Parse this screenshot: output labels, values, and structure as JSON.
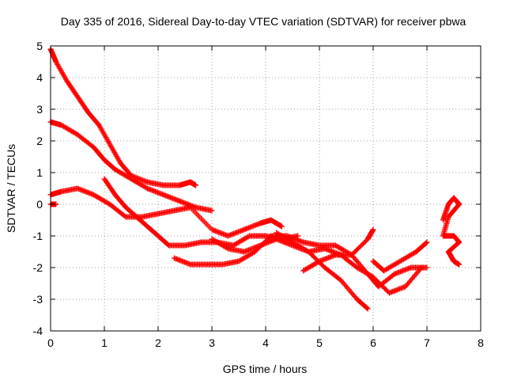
{
  "chart_data": {
    "type": "scatter",
    "title": "Day 335 of 2016, Sidereal Day-to-day VTEC variation (SDTVAR) for receiver pbwa",
    "xlabel": "GPS time / hours",
    "ylabel": "SDTVAR / TECUs",
    "xlim": [
      0,
      8
    ],
    "ylim": [
      -4,
      5
    ],
    "xticks": [
      "0",
      "1",
      "2",
      "3",
      "4",
      "5",
      "6",
      "7",
      "8"
    ],
    "yticks": [
      "-4",
      "-3",
      "-2",
      "-1",
      "0",
      "1",
      "2",
      "3",
      "4",
      "5"
    ],
    "grid": true,
    "marker": "+",
    "color": "#ff0000",
    "series": [
      {
        "x": [
          0.0,
          0.1,
          0.3,
          0.5,
          0.7,
          0.9,
          1.1,
          1.3,
          1.5,
          1.8,
          2.1,
          2.4,
          2.6,
          2.7
        ],
        "y": [
          4.9,
          4.5,
          3.9,
          3.4,
          2.9,
          2.5,
          1.9,
          1.3,
          0.9,
          0.7,
          0.6,
          0.6,
          0.7,
          0.6
        ]
      },
      {
        "x": [
          0.0,
          0.2,
          0.5,
          0.8,
          1.0,
          1.2,
          1.5,
          1.8,
          2.1,
          2.4,
          2.7,
          3.0
        ],
        "y": [
          2.6,
          2.5,
          2.2,
          1.8,
          1.4,
          1.1,
          0.8,
          0.5,
          0.3,
          0.1,
          -0.1,
          -0.2
        ]
      },
      {
        "x": [
          0.0,
          0.1
        ],
        "y": [
          0.0,
          0.0
        ]
      },
      {
        "x": [
          0.0,
          0.2,
          0.5,
          0.8,
          1.1,
          1.4,
          1.7,
          2.0,
          2.3,
          2.6,
          3.0,
          3.3,
          3.6,
          3.9,
          4.1,
          4.3
        ],
        "y": [
          0.3,
          0.4,
          0.5,
          0.3,
          0.0,
          -0.4,
          -0.4,
          -0.3,
          -0.2,
          -0.1,
          -0.8,
          -1.0,
          -0.8,
          -0.6,
          -0.5,
          -0.7
        ]
      },
      {
        "x": [
          1.0,
          1.2,
          1.4,
          1.6,
          1.8,
          2.0,
          2.2,
          2.5,
          2.8,
          3.1,
          3.4,
          3.7,
          4.0,
          4.3,
          4.6
        ],
        "y": [
          0.8,
          0.3,
          -0.1,
          -0.4,
          -0.7,
          -1.0,
          -1.3,
          -1.3,
          -1.2,
          -1.2,
          -1.3,
          -1.0,
          -1.0,
          -1.1,
          -1.0
        ]
      },
      {
        "x": [
          2.3,
          2.6,
          2.9,
          3.2,
          3.5,
          3.8,
          4.1,
          4.4,
          4.7,
          5.0,
          5.3,
          5.6,
          5.9,
          6.1,
          6.4,
          6.7,
          7.0
        ],
        "y": [
          -1.7,
          -1.9,
          -1.9,
          -1.9,
          -1.8,
          -1.5,
          -1.0,
          -1.0,
          -1.2,
          -1.3,
          -1.3,
          -1.6,
          -2.2,
          -2.6,
          -2.2,
          -2.0,
          -2.0
        ]
      },
      {
        "x": [
          4.2,
          4.5,
          4.8,
          5.1,
          5.4,
          5.7,
          5.9
        ],
        "y": [
          -0.9,
          -1.2,
          -1.5,
          -2.0,
          -2.4,
          -3.0,
          -3.3
        ]
      },
      {
        "x": [
          3.0,
          3.3,
          3.6,
          3.9,
          4.2,
          4.5,
          4.8,
          5.1,
          5.4,
          5.7,
          6.0,
          6.3,
          6.6,
          6.9
        ],
        "y": [
          -1.1,
          -1.4,
          -1.5,
          -1.3,
          -1.1,
          -1.3,
          -1.5,
          -1.4,
          -1.6,
          -2.0,
          -2.3,
          -2.8,
          -2.6,
          -2.0
        ]
      },
      {
        "x": [
          4.7,
          5.0,
          5.3,
          5.6,
          5.9,
          6.0
        ],
        "y": [
          -2.1,
          -1.8,
          -1.6,
          -1.6,
          -1.1,
          -0.8
        ]
      },
      {
        "x": [
          6.0,
          6.2,
          6.5,
          6.8,
          7.0
        ],
        "y": [
          -1.8,
          -2.1,
          -1.8,
          -1.5,
          -1.2
        ]
      },
      {
        "x": [
          7.3,
          7.4,
          7.5,
          7.6,
          7.4,
          7.3,
          7.5,
          7.6,
          7.4,
          7.5,
          7.6
        ],
        "y": [
          -0.5,
          0.0,
          0.2,
          0.0,
          -0.4,
          -1.0,
          -1.0,
          -1.2,
          -1.5,
          -1.8,
          -1.9
        ]
      }
    ]
  }
}
